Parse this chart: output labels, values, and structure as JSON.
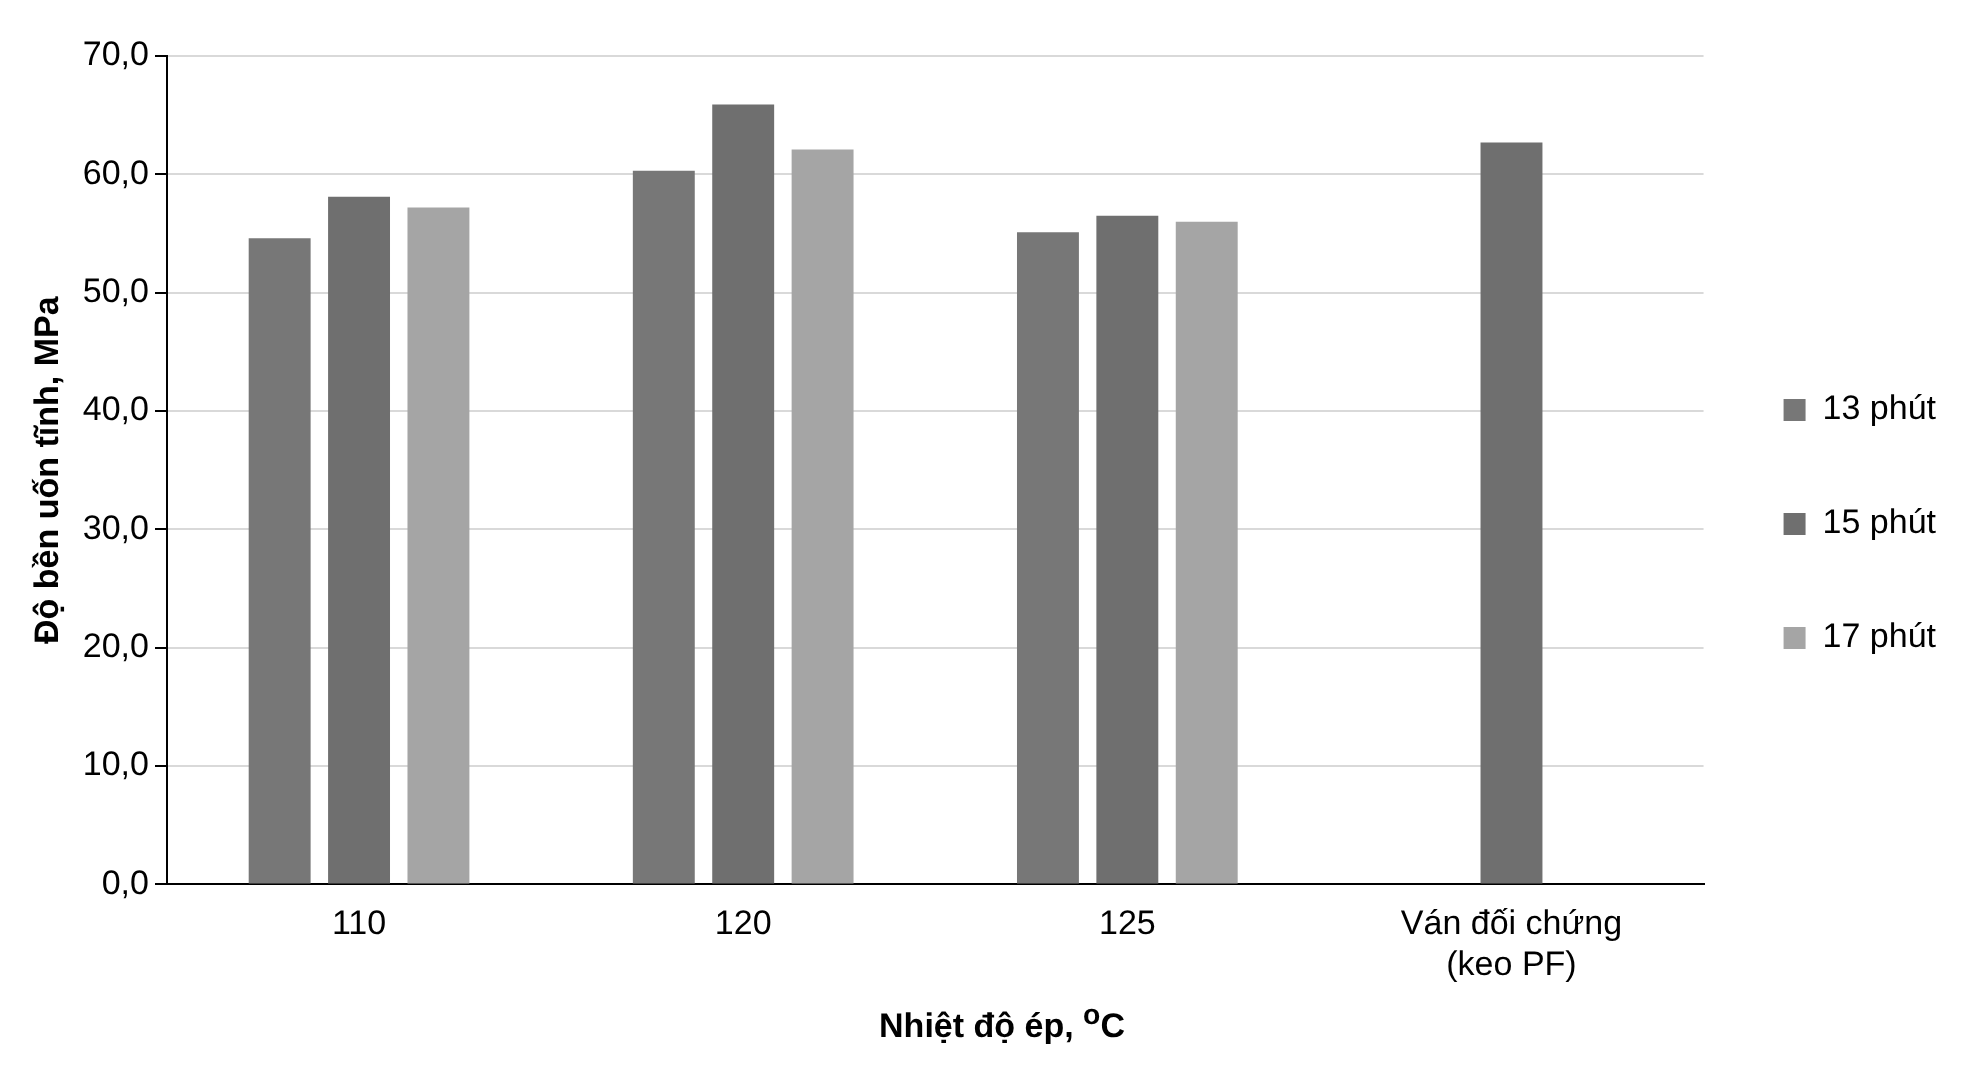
{
  "chart_data": {
    "type": "bar",
    "xlabel": "Nhiệt độ ép, $^{o}$C",
    "ylabel": "Độ bền uốn tĩnh, MPa",
    "categories": [
      "110",
      "120",
      "125",
      "Ván đối chứng\n(keo PF)"
    ],
    "series": [
      {
        "name": "13 phút",
        "color": "#777777",
        "values": [
          54.6,
          60.3,
          55.1,
          null
        ]
      },
      {
        "name": "15 phút",
        "color": "#6f6f6f",
        "values": [
          58.1,
          65.9,
          56.5,
          62.7
        ]
      },
      {
        "name": "17 phút",
        "color": "#a5a5a5",
        "values": [
          57.2,
          62.1,
          56.0,
          null
        ]
      }
    ],
    "ylim": [
      0,
      70
    ],
    "yticks": [
      {
        "value": 0,
        "label": "0,0"
      },
      {
        "value": 10,
        "label": "10,0"
      },
      {
        "value": 20,
        "label": "20,0"
      },
      {
        "value": 30,
        "label": "30,0"
      },
      {
        "value": 40,
        "label": "40,0"
      },
      {
        "value": 50,
        "label": "50,0"
      },
      {
        "value": 60,
        "label": "60,0"
      },
      {
        "value": 70,
        "label": "70,0"
      }
    ],
    "grid": "y",
    "legend": "right"
  }
}
